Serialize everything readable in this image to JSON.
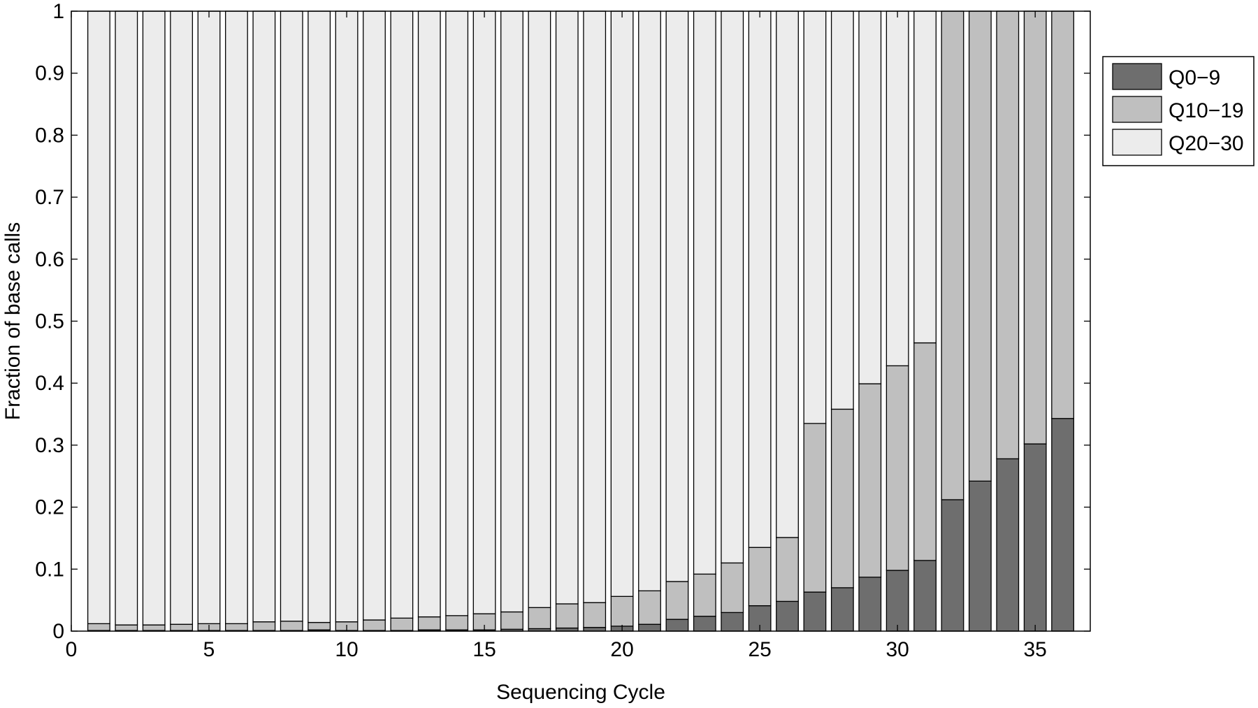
{
  "chart_data": {
    "type": "bar",
    "stacked": true,
    "title": "",
    "xlabel": "Sequencing Cycle",
    "ylabel": "Fraction of base calls",
    "xlim": [
      0,
      37
    ],
    "ylim": [
      0,
      1
    ],
    "xticks": [
      "0",
      "5",
      "10",
      "15",
      "20",
      "25",
      "30",
      "35"
    ],
    "yticks": [
      "0",
      "0.1",
      "0.2",
      "0.3",
      "0.4",
      "0.5",
      "0.6",
      "0.7",
      "0.8",
      "0.9",
      "1"
    ],
    "grid": false,
    "legend_position": "outside-right-top",
    "x": [
      1,
      2,
      3,
      4,
      5,
      6,
      7,
      8,
      9,
      10,
      11,
      12,
      13,
      14,
      15,
      16,
      17,
      18,
      19,
      20,
      21,
      22,
      23,
      24,
      25,
      26,
      27,
      28,
      29,
      30,
      31,
      32,
      33,
      34,
      35,
      36
    ],
    "series": [
      {
        "name": "Q0−9",
        "color": "#6e6e6e",
        "values": [
          0.001,
          0.001,
          0.001,
          0.001,
          0.001,
          0.001,
          0.001,
          0.001,
          0.002,
          0.001,
          0.001,
          0.001,
          0.002,
          0.002,
          0.002,
          0.003,
          0.004,
          0.005,
          0.006,
          0.008,
          0.011,
          0.019,
          0.024,
          0.03,
          0.041,
          0.048,
          0.063,
          0.07,
          0.087,
          0.098,
          0.114,
          0.212,
          0.242,
          0.278,
          0.302,
          0.343
        ]
      },
      {
        "name": "Q10−19",
        "color": "#bfbfbf",
        "values": [
          0.011,
          0.009,
          0.009,
          0.01,
          0.011,
          0.011,
          0.014,
          0.015,
          0.012,
          0.014,
          0.017,
          0.02,
          0.021,
          0.023,
          0.026,
          0.028,
          0.034,
          0.039,
          0.04,
          0.048,
          0.054,
          0.061,
          0.068,
          0.08,
          0.094,
          0.103,
          0.272,
          0.288,
          0.312,
          0.33,
          0.351,
          0.788,
          0.758,
          0.722,
          0.698,
          0.657
        ]
      },
      {
        "name": "Q20−30",
        "color": "#ececec",
        "values": [
          0.988,
          0.99,
          0.99,
          0.989,
          0.988,
          0.988,
          0.985,
          0.984,
          0.986,
          0.985,
          0.982,
          0.979,
          0.977,
          0.975,
          0.972,
          0.969,
          0.962,
          0.956,
          0.954,
          0.944,
          0.935,
          0.92,
          0.908,
          0.89,
          0.865,
          0.849,
          0.665,
          0.642,
          0.601,
          0.572,
          0.535,
          0,
          0,
          0,
          0,
          0
        ]
      }
    ]
  }
}
